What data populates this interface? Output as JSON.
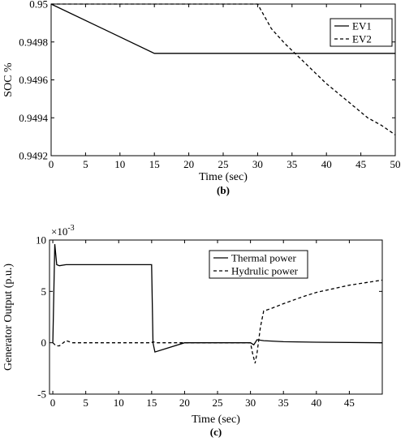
{
  "chart_data": [
    {
      "type": "line",
      "panel_label": "b",
      "xlabel": "Time (sec)",
      "ylabel": "SOC %",
      "xlim": [
        0,
        50
      ],
      "ylim": [
        0.9492,
        0.95
      ],
      "xticks": [
        "0",
        "5",
        "10",
        "15",
        "20",
        "25",
        "30",
        "35",
        "40",
        "45",
        "50"
      ],
      "yticks": [
        "0.9492",
        "0.9494",
        "0.9496",
        "0.9498",
        "0.95"
      ],
      "grid": false,
      "legend": "top-right",
      "series": [
        {
          "name": "EV1",
          "style": "solid",
          "color": "#000000",
          "x": [
            0,
            15,
            50
          ],
          "y": [
            0.95,
            0.94974,
            0.94974
          ]
        },
        {
          "name": "EV2",
          "style": "dashed",
          "color": "#000000",
          "x": [
            0,
            30,
            32,
            34,
            36,
            38,
            40,
            42,
            44,
            46,
            48,
            50
          ],
          "y": [
            0.95,
            0.95,
            0.94987,
            0.94979,
            0.94972,
            0.94965,
            0.94958,
            0.94952,
            0.94946,
            0.9494,
            0.94936,
            0.94931
          ]
        }
      ]
    },
    {
      "type": "line",
      "panel_label": "c",
      "xlabel": "Time (sec)",
      "ylabel": "Generator Output (p.u.)",
      "scale_note": "×10",
      "scale_exponent": "-3",
      "xlim": [
        -0.5,
        50
      ],
      "ylim": [
        -5,
        10
      ],
      "xticks": [
        "0",
        "5",
        "10",
        "15",
        "20",
        "25",
        "30",
        "35",
        "40",
        "45"
      ],
      "yticks": [
        "-5",
        "0",
        "5",
        "10"
      ],
      "grid": false,
      "legend": "top-right",
      "series": [
        {
          "name": "Thermal power",
          "style": "solid",
          "color": "#000000",
          "x": [
            0,
            0.3,
            0.6,
            1,
            2,
            4,
            15,
            15.2,
            15.5,
            20,
            25,
            30,
            30.5,
            31,
            32,
            35,
            40,
            50
          ],
          "y": [
            0,
            9.6,
            7.6,
            7.5,
            7.6,
            7.6,
            7.6,
            0,
            -0.9,
            0,
            0,
            0,
            -0.2,
            0.3,
            0.2,
            0.1,
            0.05,
            0
          ]
        },
        {
          "name": "Hydrulic power",
          "style": "dashed",
          "color": "#000000",
          "x": [
            0,
            0.5,
            1,
            2,
            3,
            5,
            10,
            15,
            15.2,
            15.6,
            20,
            25,
            30,
            30.3,
            30.7,
            31,
            31.5,
            32,
            33,
            35,
            38,
            40,
            45,
            50
          ],
          "y": [
            0,
            -0.3,
            -0.3,
            0.2,
            0,
            0,
            0,
            0,
            0.1,
            0,
            0,
            0,
            0,
            -1,
            -2,
            -1,
            1.5,
            3.1,
            3.3,
            3.8,
            4.5,
            4.9,
            5.6,
            6.1
          ]
        }
      ]
    }
  ]
}
